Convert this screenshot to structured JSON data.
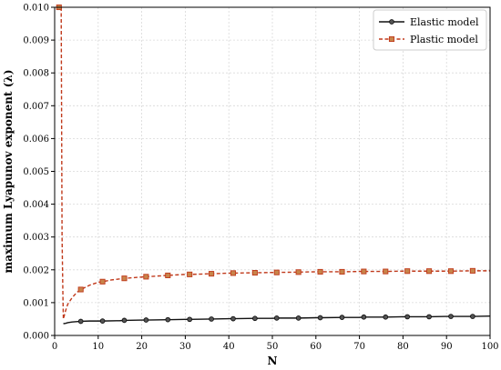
{
  "colors": {
    "elastic": "#111111",
    "plastic": "#c0391b",
    "plastic_marker_fill": "#c8844a",
    "grid": "#d9d9d9"
  },
  "chart_data": {
    "type": "line",
    "xlabel": "N",
    "ylabel": "maximum Lyapunov exponent (λ)",
    "xlim": [
      0,
      100
    ],
    "ylim": [
      0,
      0.01
    ],
    "x_ticks": [
      "0",
      "10",
      "20",
      "30",
      "40",
      "50",
      "60",
      "70",
      "80",
      "90",
      "100"
    ],
    "y_ticks": [
      "0.000",
      "0.001",
      "0.002",
      "0.003",
      "0.004",
      "0.005",
      "0.006",
      "0.007",
      "0.008",
      "0.009",
      "0.010"
    ],
    "grid": true,
    "legend_position": "top-right",
    "series": [
      {
        "name": "Elastic model",
        "line": "solid",
        "marker": "circle",
        "color": "#111111",
        "x": [
          2,
          2.5,
          3,
          4,
          5,
          6,
          8,
          10,
          11,
          15,
          16,
          20,
          21,
          26,
          30,
          31,
          36,
          40,
          41,
          46,
          50,
          51,
          56,
          60,
          61,
          66,
          70,
          71,
          76,
          80,
          81,
          86,
          90,
          91,
          96,
          100
        ],
        "y": [
          0.00036,
          0.00037,
          0.00039,
          0.00041,
          0.00042,
          0.00043,
          0.00044,
          0.00044,
          0.00044,
          0.00045,
          0.00046,
          0.00047,
          0.00047,
          0.00048,
          0.00049,
          0.00049,
          0.0005,
          0.00051,
          0.00051,
          0.00052,
          0.00052,
          0.00053,
          0.00053,
          0.00054,
          0.00054,
          0.00055,
          0.00055,
          0.00056,
          0.00056,
          0.00057,
          0.00057,
          0.00057,
          0.00058,
          0.00058,
          0.00058,
          0.00059
        ],
        "marker_x": [
          6,
          11,
          16,
          21,
          26,
          31,
          36,
          41,
          46,
          51,
          56,
          61,
          66,
          71,
          76,
          81,
          86,
          91,
          96
        ]
      },
      {
        "name": "Plastic model",
        "line": "dashed",
        "marker": "square",
        "color": "#c0391b",
        "x": [
          1.5,
          1.7,
          1.9,
          2,
          2.2,
          2.5,
          3,
          4,
          5,
          6,
          8,
          10,
          11,
          13,
          16,
          20,
          21,
          26,
          30,
          31,
          36,
          40,
          41,
          46,
          50,
          51,
          56,
          60,
          61,
          66,
          70,
          71,
          76,
          80,
          81,
          86,
          90,
          91,
          96,
          100
        ],
        "y": [
          0.01,
          0.003,
          0.0012,
          0.0005,
          0.0006,
          0.00075,
          0.00095,
          0.00115,
          0.0013,
          0.0014,
          0.00153,
          0.00162,
          0.00164,
          0.00169,
          0.00174,
          0.00178,
          0.00179,
          0.00183,
          0.00186,
          0.00186,
          0.00188,
          0.0019,
          0.0019,
          0.00191,
          0.00192,
          0.00192,
          0.00193,
          0.00194,
          0.00194,
          0.00194,
          0.00195,
          0.00195,
          0.00195,
          0.00196,
          0.00196,
          0.00196,
          0.00196,
          0.00196,
          0.00197,
          0.00197
        ],
        "marker_x": [
          1,
          6,
          11,
          16,
          21,
          26,
          31,
          36,
          41,
          46,
          51,
          56,
          61,
          66,
          71,
          76,
          81,
          86,
          91,
          96
        ]
      }
    ]
  }
}
